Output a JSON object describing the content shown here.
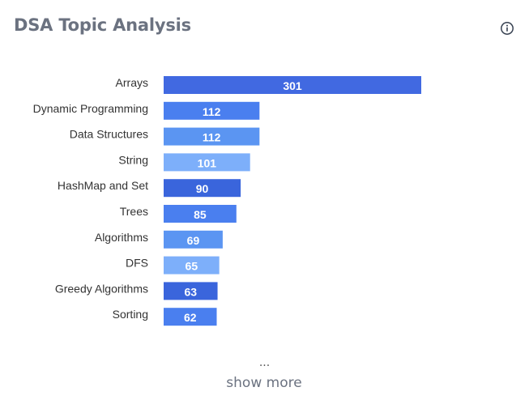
{
  "header": {
    "title": "DSA Topic Analysis",
    "info_icon": "info-icon"
  },
  "chart_data": {
    "type": "bar",
    "orientation": "horizontal",
    "title": "DSA Topic Analysis",
    "xlabel": "",
    "ylabel": "",
    "categories": [
      "Arrays",
      "Dynamic Programming",
      "Data Structures",
      "String",
      "HashMap and Set",
      "Trees",
      "Algorithms",
      "DFS",
      "Greedy Algorithms",
      "Sorting"
    ],
    "values": [
      301,
      112,
      112,
      101,
      90,
      85,
      69,
      65,
      63,
      62
    ],
    "bar_colors": [
      "#4169e1",
      "#4a7fef",
      "#5b95f2",
      "#7daffa",
      "#3a65dc",
      "#4a7fef",
      "#5b95f2",
      "#7daffa",
      "#3a65dc",
      "#4a7fef"
    ],
    "xlim": [
      0,
      301
    ],
    "grid": false,
    "legend": "none"
  },
  "footer": {
    "ellipsis": "...",
    "show_more": "show more"
  }
}
